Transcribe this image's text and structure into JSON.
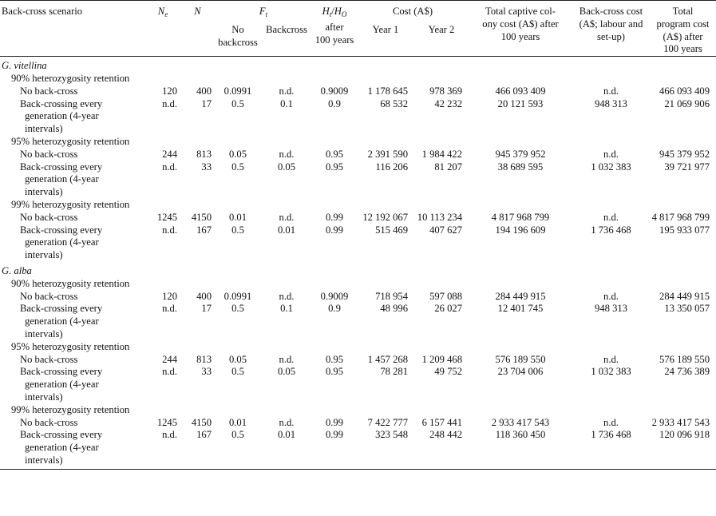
{
  "header": {
    "scenario": "Back-cross scenario",
    "ne_main": "N",
    "ne_sub": "e",
    "n": "N",
    "ft_main": "F",
    "ft_sub": "t",
    "ft_nobc": "No backcross",
    "ft_bc": "Backcross",
    "hh_h": "H",
    "hh_hsub": "t",
    "hh_slash": "/",
    "hh_h2": "H",
    "hh_osub": "O",
    "hh_after": "after",
    "hh_years": "100 years",
    "cost": "Cost (A$)",
    "year1": "Year 1",
    "year2": "Year 2",
    "total_colony": [
      "Total captive col-",
      "ony cost (A$) after",
      "100 years"
    ],
    "backcross_cost": [
      "Back-cross cost",
      "(A$; labour and",
      "set-up)"
    ],
    "total_program": [
      "Total",
      "program cost",
      "(A$) after",
      "100 years"
    ]
  },
  "species": [
    {
      "name": "G. vitellina",
      "groups": [
        {
          "label": "90% heterozygosity retention",
          "rows": [
            {
              "scenario": [
                "No back-cross"
              ],
              "ne": "120",
              "n": "400",
              "ft_nobc": "0.0991",
              "ft_bc": "n.d.",
              "hh": "0.9009",
              "y1": "1 178 645",
              "y2": "978 369",
              "total_colony": "466 093 409",
              "bc_cost": "n.d.",
              "total_program": "466 093 409"
            },
            {
              "scenario": [
                "Back-crossing every",
                "generation (4-year",
                "intervals)"
              ],
              "ne": "n.d.",
              "n": "17",
              "ft_nobc": "0.5",
              "ft_bc": "0.1",
              "hh": "0.9",
              "y1": "68 532",
              "y2": "42 232",
              "total_colony": "20 121 593",
              "bc_cost": "948 313",
              "total_program": "21 069 906"
            }
          ]
        },
        {
          "label": "95% heterozygosity retention",
          "rows": [
            {
              "scenario": [
                "No back-cross"
              ],
              "ne": "244",
              "n": "813",
              "ft_nobc": "0.05",
              "ft_bc": "n.d.",
              "hh": "0.95",
              "y1": "2 391 590",
              "y2": "1 984 422",
              "total_colony": "945 379 952",
              "bc_cost": "n.d.",
              "total_program": "945 379 952"
            },
            {
              "scenario": [
                "Back-crossing every",
                "generation (4-year",
                "intervals)"
              ],
              "ne": "n.d.",
              "n": "33",
              "ft_nobc": "0.5",
              "ft_bc": "0.05",
              "hh": "0.95",
              "y1": "116 206",
              "y2": "81 207",
              "total_colony": "38 689 595",
              "bc_cost": "1 032 383",
              "total_program": "39 721 977"
            }
          ]
        },
        {
          "label": "99% heterozygosity retention",
          "rows": [
            {
              "scenario": [
                "No back-cross"
              ],
              "ne": "1245",
              "n": "4150",
              "ft_nobc": "0.01",
              "ft_bc": "n.d.",
              "hh": "0.99",
              "y1": "12 192 067",
              "y2": "10 113 234",
              "total_colony": "4 817 968 799",
              "bc_cost": "n.d.",
              "total_program": "4 817 968 799"
            },
            {
              "scenario": [
                "Back-crossing every",
                "generation (4-year",
                "intervals)"
              ],
              "ne": "n.d.",
              "n": "167",
              "ft_nobc": "0.5",
              "ft_bc": "0.01",
              "hh": "0.99",
              "y1": "515 469",
              "y2": "407 627",
              "total_colony": "194 196 609",
              "bc_cost": "1 736 468",
              "total_program": "195 933 077"
            }
          ]
        }
      ]
    },
    {
      "name": "G. alba",
      "groups": [
        {
          "label": "90% heterozygosity retention",
          "rows": [
            {
              "scenario": [
                "No back-cross"
              ],
              "ne": "120",
              "n": "400",
              "ft_nobc": "0.0991",
              "ft_bc": "n.d.",
              "hh": "0.9009",
              "y1": "718 954",
              "y2": "597 088",
              "total_colony": "284 449 915",
              "bc_cost": "n.d.",
              "total_program": "284 449 915"
            },
            {
              "scenario": [
                "Back-crossing every",
                "generation (4-year",
                "intervals)"
              ],
              "ne": "n.d.",
              "n": "17",
              "ft_nobc": "0.5",
              "ft_bc": "0.1",
              "hh": "0.9",
              "y1": "48 996",
              "y2": "26 027",
              "total_colony": "12 401 745",
              "bc_cost": "948 313",
              "total_program": "13 350 057"
            }
          ]
        },
        {
          "label": "95% heterozygosity retention",
          "rows": [
            {
              "scenario": [
                "No back-cross"
              ],
              "ne": "244",
              "n": "813",
              "ft_nobc": "0.05",
              "ft_bc": "n.d.",
              "hh": "0.95",
              "y1": "1 457 268",
              "y2": "1 209 468",
              "total_colony": "576 189 550",
              "bc_cost": "n.d.",
              "total_program": "576 189 550"
            },
            {
              "scenario": [
                "Back-crossing every",
                "generation (4-year",
                "intervals)"
              ],
              "ne": "n.d.",
              "n": "33",
              "ft_nobc": "0.5",
              "ft_bc": "0.05",
              "hh": "0.95",
              "y1": "78 281",
              "y2": "49 752",
              "total_colony": "23 704 006",
              "bc_cost": "1 032 383",
              "total_program": "24 736 389"
            }
          ]
        },
        {
          "label": "99% heterozygosity retention",
          "rows": [
            {
              "scenario": [
                "No back-cross"
              ],
              "ne": "1245",
              "n": "4150",
              "ft_nobc": "0.01",
              "ft_bc": "n.d.",
              "hh": "0.99",
              "y1": "7 422 777",
              "y2": "6 157 441",
              "total_colony": "2 933 417 543",
              "bc_cost": "n.d.",
              "total_program": "2 933 417 543"
            },
            {
              "scenario": [
                "Back-crossing every",
                "generation (4-year",
                "intervals)"
              ],
              "ne": "n.d.",
              "n": "167",
              "ft_nobc": "0.5",
              "ft_bc": "0.01",
              "hh": "0.99",
              "y1": "323 548",
              "y2": "248 442",
              "total_colony": "118 360 450",
              "bc_cost": "1 736 468",
              "total_program": "120 096 918"
            }
          ]
        }
      ]
    }
  ]
}
